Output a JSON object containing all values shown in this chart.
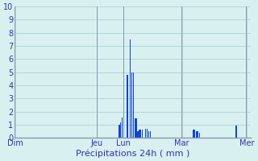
{
  "xlabel": "Précipitations 24h ( mm )",
  "background_color": "#d8f0f0",
  "bar_color": "#1144cc",
  "grid_color": "#aacccc",
  "spine_color": "#8899aa",
  "ylim": [
    0,
    10
  ],
  "yticks": [
    0,
    1,
    2,
    3,
    4,
    5,
    6,
    7,
    8,
    9,
    10
  ],
  "day_labels": [
    "Dim",
    "Jeu",
    "Lun",
    "Mar",
    "Mer"
  ],
  "bar_values": [
    0,
    0,
    0,
    0,
    0,
    0,
    0,
    0,
    0,
    0,
    0,
    0,
    0,
    0,
    0,
    0,
    0,
    0,
    0,
    0,
    0,
    0,
    0,
    0,
    0,
    0,
    0,
    0,
    0,
    0,
    0,
    0,
    0,
    0,
    0,
    0,
    0,
    0,
    0,
    0,
    0,
    0,
    0,
    0,
    0,
    0,
    0,
    0,
    0,
    0,
    0,
    0,
    0,
    0,
    0,
    0,
    0,
    0,
    0,
    0,
    0,
    0,
    0,
    0,
    0,
    0,
    0,
    0,
    0,
    0,
    0,
    0,
    0,
    0,
    0,
    0,
    0,
    0,
    0,
    0,
    0,
    0,
    0,
    0,
    0,
    0,
    0,
    0,
    0,
    0,
    0,
    0,
    0,
    0,
    0,
    0,
    0,
    0,
    1.0,
    1.2,
    0,
    1.55,
    1.5,
    0,
    0,
    4.8,
    4.8,
    0,
    7.5,
    0,
    5.0,
    5.0,
    0,
    1.5,
    1.5,
    0.5,
    0.5,
    0.6,
    0.6,
    0,
    0.65,
    0,
    0,
    0.7,
    0.7,
    0,
    0.5,
    0.5,
    0,
    0,
    0,
    0,
    0,
    0,
    0,
    0,
    0,
    0,
    0,
    0,
    0,
    0,
    0,
    0,
    0,
    0,
    0,
    0,
    0,
    0,
    0,
    0,
    0,
    0,
    0,
    0,
    0,
    0,
    0,
    0,
    0,
    0,
    0,
    0,
    0,
    0,
    0,
    0,
    0.65,
    0.65,
    0,
    0.5,
    0.5,
    0,
    0.35,
    0,
    0,
    0,
    0,
    0,
    0,
    0,
    0,
    0,
    0,
    0,
    0,
    0,
    0,
    0,
    0,
    0,
    0,
    0,
    0,
    0,
    0,
    0,
    0,
    0,
    0,
    0,
    0,
    0,
    0,
    0,
    0,
    0,
    0.9,
    0.9,
    0,
    0,
    0,
    0,
    0,
    0,
    0,
    0,
    0,
    0,
    0,
    0
  ],
  "xlabel_fontsize": 8,
  "tick_fontsize": 7,
  "tick_color": "#3333aa",
  "figsize": [
    3.2,
    2.0
  ],
  "dpi": 100
}
